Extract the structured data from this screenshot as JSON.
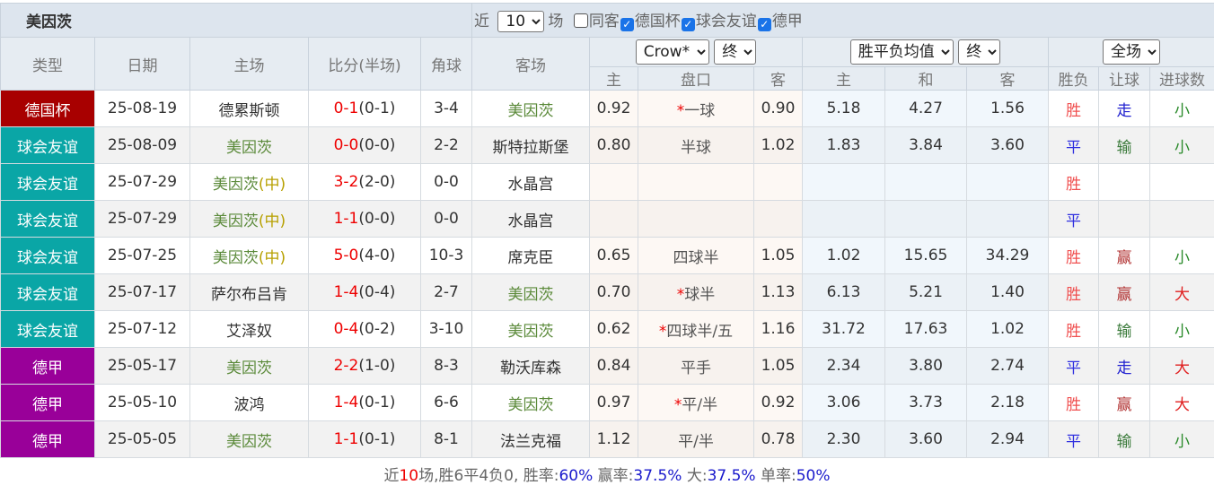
{
  "header": {
    "team": "美因茨",
    "recent_prefix": "近",
    "recent_count": "10",
    "recent_suffix": "场",
    "filters": [
      {
        "label": "同客",
        "checked": false
      },
      {
        "label": "德国杯",
        "checked": true
      },
      {
        "label": "球会友谊",
        "checked": true
      },
      {
        "label": "德甲",
        "checked": true
      }
    ]
  },
  "columns": {
    "type": "类型",
    "date": "日期",
    "home": "主场",
    "score": "比分(半场)",
    "corner": "角球",
    "away": "客场",
    "ah_company": "Crow*",
    "ah_time": "终",
    "eu_type": "胜平负均值",
    "eu_time": "终",
    "result_scope": "全场",
    "ah_home": "主",
    "ah_line": "盘口",
    "ah_away": "客",
    "eu_home": "主",
    "eu_draw": "和",
    "eu_away": "客",
    "wl": "胜负",
    "handicap": "让球",
    "goals": "进球数"
  },
  "colors": {
    "德国杯": "#a80000",
    "球会友谊": "#0aa6a6",
    "德甲": "#990099"
  },
  "rows": [
    {
      "type": "德国杯",
      "date": "25-08-19",
      "home": "德累斯顿",
      "home_neutral": "",
      "score": "0-1",
      "half": "(0-1)",
      "corner": "3-4",
      "away": "美因茨",
      "ah_h": "0.92",
      "ah_star": "*",
      "ah_line": "一球",
      "ah_a": "0.90",
      "eu_h": "5.18",
      "eu_d": "4.27",
      "eu_a": "1.56",
      "wl": "胜",
      "hc": "走",
      "goals": "小"
    },
    {
      "type": "球会友谊",
      "date": "25-08-09",
      "home": "美因茨",
      "home_neutral": "",
      "score": "0-0",
      "half": "(0-0)",
      "corner": "2-2",
      "away": "斯特拉斯堡",
      "ah_h": "0.80",
      "ah_star": "",
      "ah_line": "半球",
      "ah_a": "1.02",
      "eu_h": "1.83",
      "eu_d": "3.84",
      "eu_a": "3.60",
      "wl": "平",
      "hc": "输",
      "goals": "小"
    },
    {
      "type": "球会友谊",
      "date": "25-07-29",
      "home": "美因茨",
      "home_neutral": "(中)",
      "score": "3-2",
      "half": "(2-0)",
      "corner": "0-0",
      "away": "水晶宫",
      "ah_h": "",
      "ah_star": "",
      "ah_line": "",
      "ah_a": "",
      "eu_h": "",
      "eu_d": "",
      "eu_a": "",
      "wl": "胜",
      "hc": "",
      "goals": ""
    },
    {
      "type": "球会友谊",
      "date": "25-07-29",
      "home": "美因茨",
      "home_neutral": "(中)",
      "score": "1-1",
      "half": "(0-0)",
      "corner": "0-0",
      "away": "水晶宫",
      "ah_h": "",
      "ah_star": "",
      "ah_line": "",
      "ah_a": "",
      "eu_h": "",
      "eu_d": "",
      "eu_a": "",
      "wl": "平",
      "hc": "",
      "goals": ""
    },
    {
      "type": "球会友谊",
      "date": "25-07-25",
      "home": "美因茨",
      "home_neutral": "(中)",
      "score": "5-0",
      "half": "(4-0)",
      "corner": "10-3",
      "away": "席克臣",
      "ah_h": "0.65",
      "ah_star": "",
      "ah_line": "四球半",
      "ah_a": "1.05",
      "eu_h": "1.02",
      "eu_d": "15.65",
      "eu_a": "34.29",
      "wl": "胜",
      "hc": "赢",
      "goals": "小"
    },
    {
      "type": "球会友谊",
      "date": "25-07-17",
      "home": "萨尔布吕肯",
      "home_neutral": "",
      "score": "1-4",
      "half": "(0-4)",
      "corner": "2-7",
      "away": "美因茨",
      "ah_h": "0.70",
      "ah_star": "*",
      "ah_line": "球半",
      "ah_a": "1.13",
      "eu_h": "6.13",
      "eu_d": "5.21",
      "eu_a": "1.40",
      "wl": "胜",
      "hc": "赢",
      "goals": "大"
    },
    {
      "type": "球会友谊",
      "date": "25-07-12",
      "home": "艾泽奴",
      "home_neutral": "",
      "score": "0-4",
      "half": "(0-2)",
      "corner": "3-10",
      "away": "美因茨",
      "ah_h": "0.62",
      "ah_star": "*",
      "ah_line": "四球半/五",
      "ah_a": "1.16",
      "eu_h": "31.72",
      "eu_d": "17.63",
      "eu_a": "1.02",
      "wl": "胜",
      "hc": "输",
      "goals": "小"
    },
    {
      "type": "德甲",
      "date": "25-05-17",
      "home": "美因茨",
      "home_neutral": "",
      "score": "2-2",
      "half": "(1-0)",
      "corner": "8-3",
      "away": "勒沃库森",
      "ah_h": "0.84",
      "ah_star": "",
      "ah_line": "平手",
      "ah_a": "1.05",
      "eu_h": "2.34",
      "eu_d": "3.80",
      "eu_a": "2.74",
      "wl": "平",
      "hc": "走",
      "goals": "大"
    },
    {
      "type": "德甲",
      "date": "25-05-10",
      "home": "波鸿",
      "home_neutral": "",
      "score": "1-4",
      "half": "(0-1)",
      "corner": "6-6",
      "away": "美因茨",
      "ah_h": "0.97",
      "ah_star": "*",
      "ah_line": "平/半",
      "ah_a": "0.92",
      "eu_h": "3.06",
      "eu_d": "3.73",
      "eu_a": "2.18",
      "wl": "胜",
      "hc": "赢",
      "goals": "大"
    },
    {
      "type": "德甲",
      "date": "25-05-05",
      "home": "美因茨",
      "home_neutral": "",
      "score": "1-1",
      "half": "(0-1)",
      "corner": "8-1",
      "away": "法兰克福",
      "ah_h": "1.12",
      "ah_star": "",
      "ah_line": "平/半",
      "ah_a": "0.78",
      "eu_h": "2.30",
      "eu_d": "3.60",
      "eu_a": "2.94",
      "wl": "平",
      "hc": "输",
      "goals": "小"
    }
  ],
  "result_colors": {
    "胜": "#f05050",
    "平": "#3030e0",
    "走": "#2020d0",
    "赢": "#b03030",
    "输": "#3a7a3a",
    "小": "#2a8a2a",
    "大": "#e02020"
  },
  "footer": {
    "p1": "近",
    "n": "10",
    "p2": "场,胜6平4负0, 胜率:",
    "win_rate": "60%",
    "p3": " 赢率:",
    "cover_rate": "37.5%",
    "p4": " 大:",
    "over_rate": "37.5%",
    "p5": " 单率:",
    "odd_rate": "50%"
  }
}
